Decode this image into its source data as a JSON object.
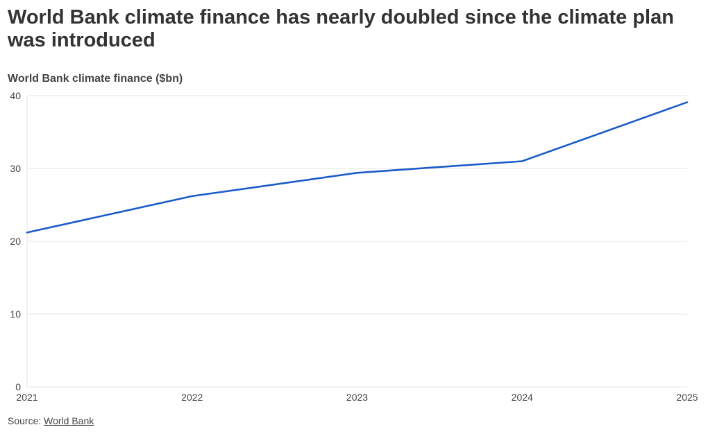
{
  "chart_data": {
    "type": "line",
    "title": "World Bank climate finance has nearly doubled since the climate plan was introduced",
    "ylabel": "World Bank climate finance ($bn)",
    "xlabel": "",
    "x": [
      "2021",
      "2022",
      "2023",
      "2024",
      "2025"
    ],
    "series": [
      {
        "name": "World Bank climate finance",
        "values": [
          21.2,
          26.2,
          29.4,
          31.0,
          39.1
        ]
      }
    ],
    "ylim": [
      0,
      40
    ],
    "yticks": [
      "0",
      "10",
      "20",
      "30",
      "40"
    ],
    "grid": true,
    "legend": "none"
  },
  "source": {
    "prefix": "Source: ",
    "link_text": "World Bank"
  },
  "colors": {
    "line": "#1a5bc9",
    "grid": "#e6e6e6",
    "title_text": "#333333"
  }
}
